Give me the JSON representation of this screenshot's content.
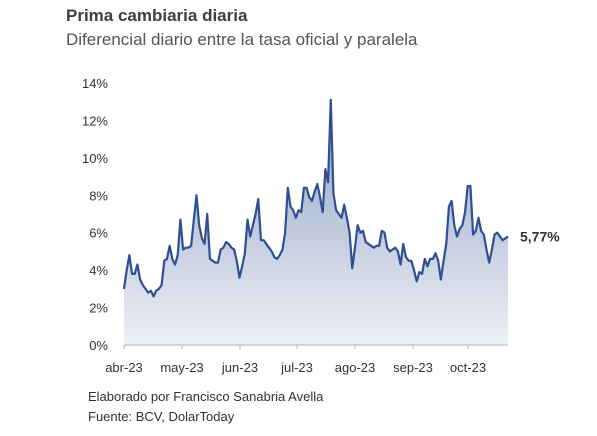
{
  "chart_data": {
    "type": "area",
    "title": "Prima cambiaria diaria",
    "subtitle": "Diferencial diario entre la tasa oficial y paralela",
    "y_ticks": [
      "0%",
      "2%",
      "4%",
      "6%",
      "8%",
      "10%",
      "12%",
      "14%"
    ],
    "ylim": [
      0,
      14
    ],
    "x_tick_labels": [
      "abr-23",
      "may-23",
      "jun-23",
      "jul-23",
      "ago-23",
      "sep-23",
      "oct-23"
    ],
    "last_value_label": "5,77%",
    "grid": false,
    "series": [
      {
        "values": [
          3.0,
          4.0,
          4.8,
          3.8,
          3.8,
          4.3,
          3.5,
          3.2,
          3.0,
          2.8,
          2.9,
          2.6,
          2.9,
          3.0,
          3.2,
          4.5,
          4.6,
          5.3,
          4.6,
          4.3,
          4.8,
          6.7,
          5.1,
          5.2,
          5.2,
          5.3,
          6.7,
          8.0,
          6.4,
          5.7,
          5.4,
          7.0,
          4.6,
          4.5,
          4.4,
          4.4,
          5.1,
          5.2,
          5.5,
          5.4,
          5.2,
          5.1,
          4.5,
          3.6,
          4.2,
          4.9,
          6.7,
          5.8,
          6.4,
          7.0,
          7.8,
          5.6,
          5.6,
          5.4,
          5.2,
          5.0,
          4.7,
          4.6,
          4.8,
          5.1,
          6.0,
          8.4,
          7.4,
          7.2,
          6.8,
          7.2,
          7.1,
          8.4,
          8.4,
          7.9,
          7.7,
          8.2,
          8.6,
          7.9,
          7.1,
          9.4,
          8.7,
          13.1,
          8.1,
          7.2,
          7.0,
          6.8,
          7.5,
          6.8,
          6.0,
          4.1,
          5.2,
          6.4,
          6.0,
          6.1,
          5.5,
          5.4,
          5.3,
          5.2,
          5.3,
          5.3,
          6.1,
          6.0,
          5.2,
          5.0,
          5.1,
          5.2,
          5.0,
          4.3,
          5.4,
          4.7,
          4.5,
          4.5,
          4.0,
          3.4,
          3.9,
          3.8,
          4.6,
          4.2,
          4.6,
          4.6,
          4.9,
          4.5,
          3.5,
          4.5,
          5.4,
          7.4,
          7.7,
          6.4,
          5.8,
          6.2,
          6.4,
          7.1,
          8.5,
          8.5,
          5.9,
          6.1,
          6.8,
          6.1,
          5.9,
          5.1,
          4.4,
          5.1,
          5.9,
          6.0,
          5.8,
          5.6,
          5.7,
          5.8
        ]
      }
    ]
  },
  "footer": {
    "author": "Elaborado por Francisco Sanabria Avella",
    "source": "Fuente: BCV, DolarToday"
  }
}
